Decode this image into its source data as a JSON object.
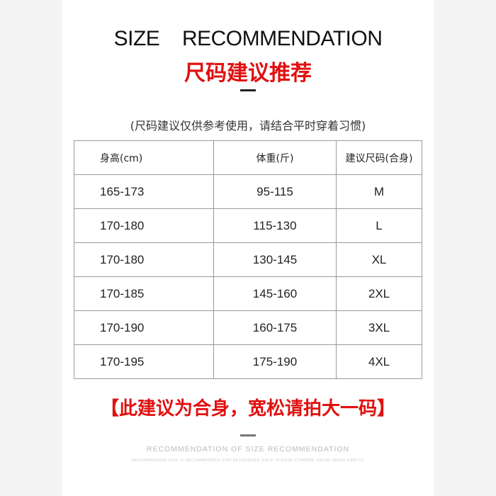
{
  "title_en": "SIZE  RECOMMENDATION",
  "title_cn": "尺码建议推荐",
  "note": "(尺码建议仅供参考使用，请结合平时穿着习惯)",
  "table": {
    "headers": [
      "身高(cm)",
      "体重(斤)",
      "建议尺码(合身)"
    ],
    "rows": [
      [
        "165-173",
        "95-115",
        "M"
      ],
      [
        "170-180",
        "115-130",
        "L"
      ],
      [
        "170-180",
        "130-145",
        "XL"
      ],
      [
        "170-185",
        "145-160",
        "2XL"
      ],
      [
        "170-190",
        "160-175",
        "3XL"
      ],
      [
        "170-195",
        "175-190",
        "4XL"
      ]
    ]
  },
  "advice": "【此建议为合身，宽松请拍大一码】",
  "footer_title": "RECOMMENDATION OF SIZE RECOMMENDATION",
  "footer_sub": "RECOMMENDED SIZE IS RECOMMENDED FOR REFERENCE ONLY. PLEASE COMBINE USUAL WEAR HABITS.",
  "colors": {
    "accent": "#e01010"
  }
}
